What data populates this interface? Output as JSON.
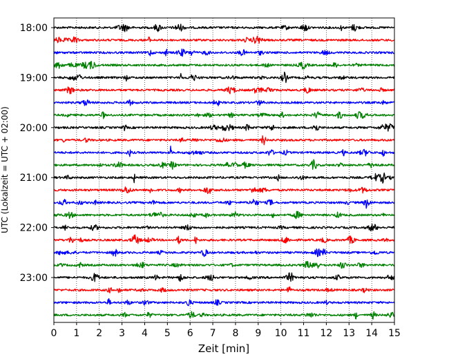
{
  "chart_data": {
    "type": "line",
    "title": "",
    "xlabel": "Zeit  [min]",
    "ylabel": "UTC (Lokalzeit = UTC + 02:00)",
    "xlim": [
      0,
      15
    ],
    "x_ticks": [
      "0",
      "1",
      "2",
      "3",
      "4",
      "5",
      "6",
      "7",
      "8",
      "9",
      "10",
      "11",
      "12",
      "13",
      "14",
      "15"
    ],
    "y_ticks": [
      "18:00",
      "19:00",
      "20:00",
      "21:00",
      "22:00",
      "23:00"
    ],
    "grid": "vertical-dotted",
    "trace_interval_minutes": 15,
    "trace_colors": [
      "#000000",
      "#ff0000",
      "#0000ff",
      "#008000"
    ],
    "series": [
      {
        "start": "18:00",
        "color": "#000000"
      },
      {
        "start": "18:15",
        "color": "#ff0000"
      },
      {
        "start": "18:30",
        "color": "#0000ff"
      },
      {
        "start": "18:45",
        "color": "#008000"
      },
      {
        "start": "19:00",
        "color": "#000000"
      },
      {
        "start": "19:15",
        "color": "#ff0000"
      },
      {
        "start": "19:30",
        "color": "#0000ff"
      },
      {
        "start": "19:45",
        "color": "#008000"
      },
      {
        "start": "20:00",
        "color": "#000000"
      },
      {
        "start": "20:15",
        "color": "#ff0000"
      },
      {
        "start": "20:30",
        "color": "#0000ff"
      },
      {
        "start": "20:45",
        "color": "#008000"
      },
      {
        "start": "21:00",
        "color": "#000000"
      },
      {
        "start": "21:15",
        "color": "#ff0000"
      },
      {
        "start": "21:30",
        "color": "#0000ff"
      },
      {
        "start": "21:45",
        "color": "#008000"
      },
      {
        "start": "22:00",
        "color": "#000000"
      },
      {
        "start": "22:15",
        "color": "#ff0000"
      },
      {
        "start": "22:30",
        "color": "#0000ff"
      },
      {
        "start": "22:45",
        "color": "#008000"
      },
      {
        "start": "23:00",
        "color": "#000000"
      },
      {
        "start": "23:15",
        "color": "#ff0000"
      },
      {
        "start": "23:30",
        "color": "#0000ff"
      },
      {
        "start": "23:45",
        "color": "#008000"
      }
    ]
  }
}
